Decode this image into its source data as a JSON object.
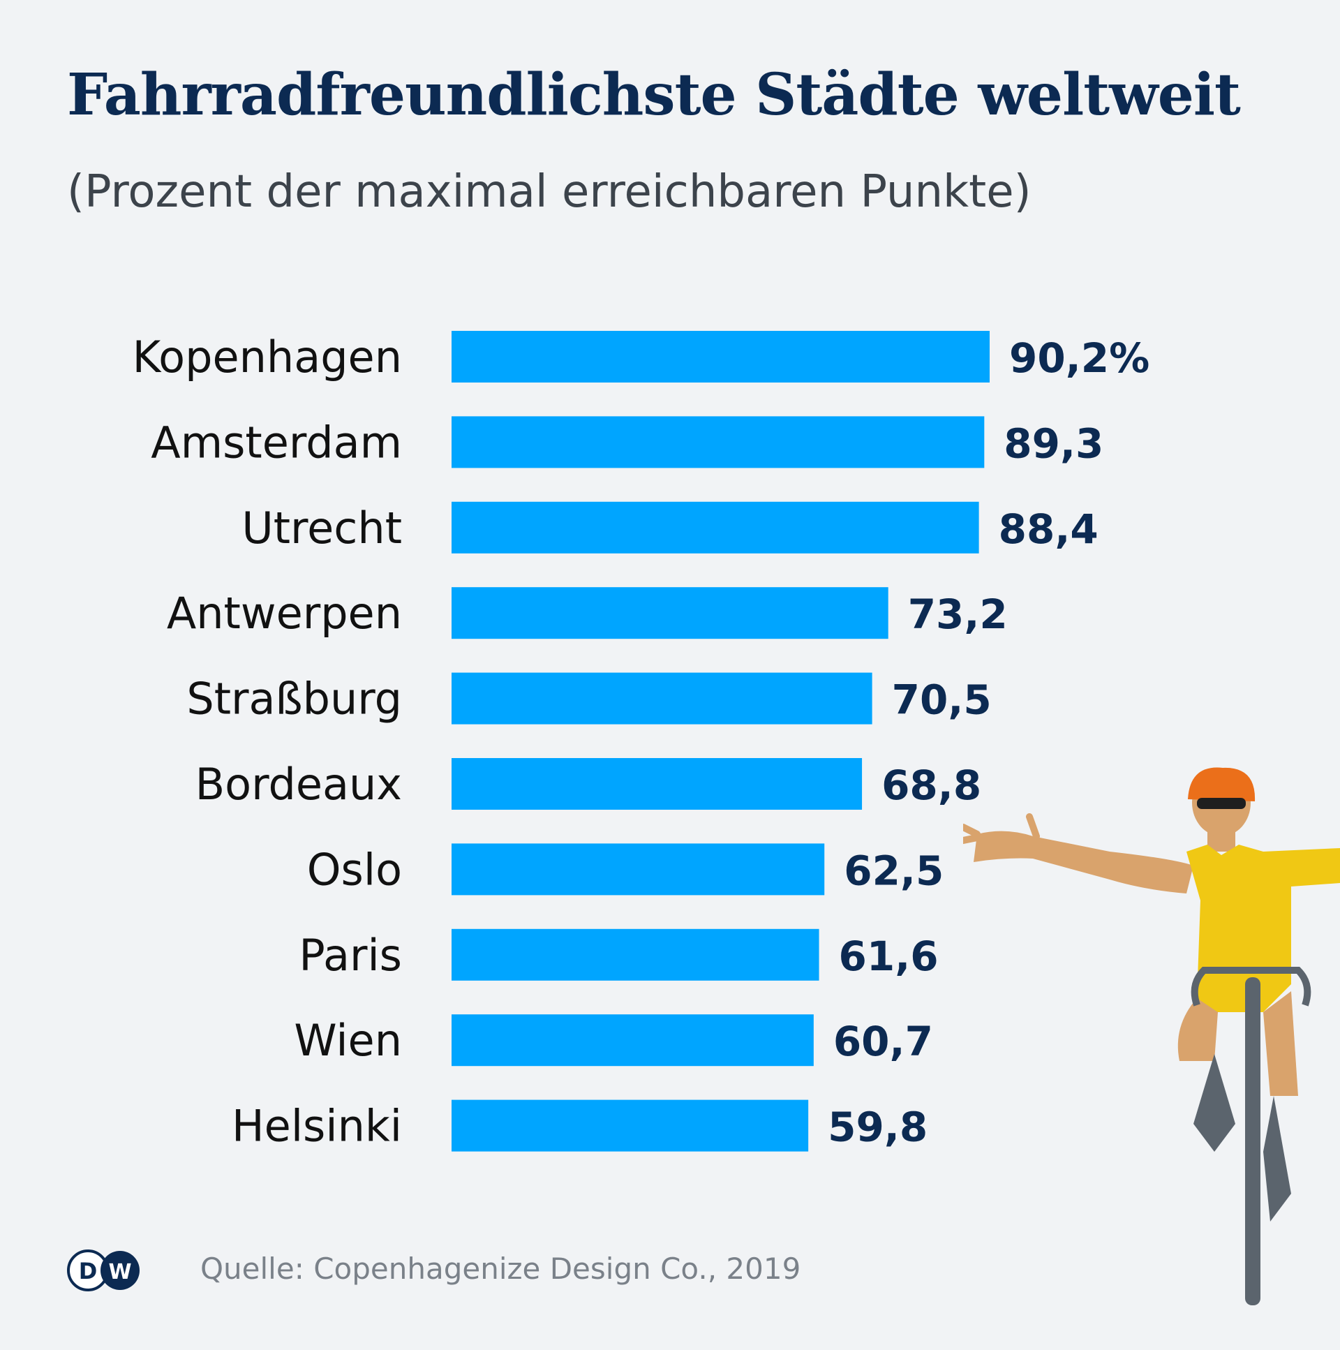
{
  "header": {
    "title": "Fahrradfreundlichste Städte weltweit",
    "subtitle": "(Prozent der maximal erreichbaren Punkte)"
  },
  "footer": {
    "source": "Quelle: Copenhagenize Design Co., 2019",
    "logo_text": "DW"
  },
  "colors": {
    "bar": "#00a5ff",
    "value_text": "#0c2a52",
    "label_text": "#111111",
    "background": "#f1f3f5"
  },
  "chart_data": {
    "type": "bar",
    "orientation": "horizontal",
    "categories": [
      "Kopenhagen",
      "Amsterdam",
      "Utrecht",
      "Antwerpen",
      "Straßburg",
      "Bordeaux",
      "Oslo",
      "Paris",
      "Wien",
      "Helsinki"
    ],
    "values": [
      90.2,
      89.3,
      88.4,
      73.2,
      70.5,
      68.8,
      62.5,
      61.6,
      60.7,
      59.8
    ],
    "value_labels": [
      "90,2%",
      "89,3",
      "88,4",
      "73,2",
      "70,5",
      "68,8",
      "62,5",
      "61,6",
      "60,7",
      "59,8"
    ],
    "title": "Fahrradfreundlichste Städte weltweit",
    "subtitle": "(Prozent der maximal erreichbaren Punkte)",
    "xlabel": "",
    "ylabel": "",
    "xlim": [
      0,
      100
    ],
    "grid": false,
    "legend": "none"
  }
}
